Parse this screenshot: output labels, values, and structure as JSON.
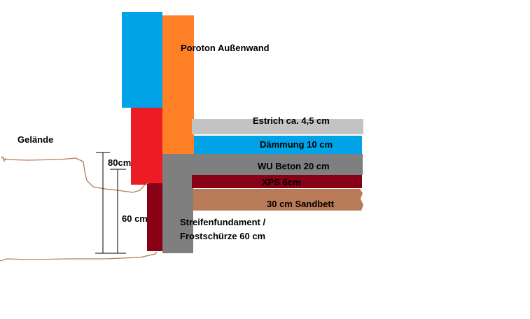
{
  "labels": {
    "wall": "Poroton Außenwand",
    "screed": "Estrich ca. 4,5 cm",
    "insulation": "Dämmung 10 cm",
    "concrete": "WU Beton 20 cm",
    "xps": "XPS 6cm",
    "sand": "30 cm Sandbett",
    "foundation_line1": "Streifenfundament /",
    "foundation_line2": "Frostschürze 60 cm",
    "terrain": "Gelände",
    "dim_80": "80cm",
    "dim_60": "60 cm"
  },
  "colors": {
    "blue": "#00a2e8",
    "orange": "#ff7f27",
    "red": "#ed1c24",
    "dark_red": "#880015",
    "gray": "#7f7f7f",
    "light_gray": "#c3c3c3",
    "sand_brown": "#b97a57",
    "ground_line": "#b97a57"
  }
}
